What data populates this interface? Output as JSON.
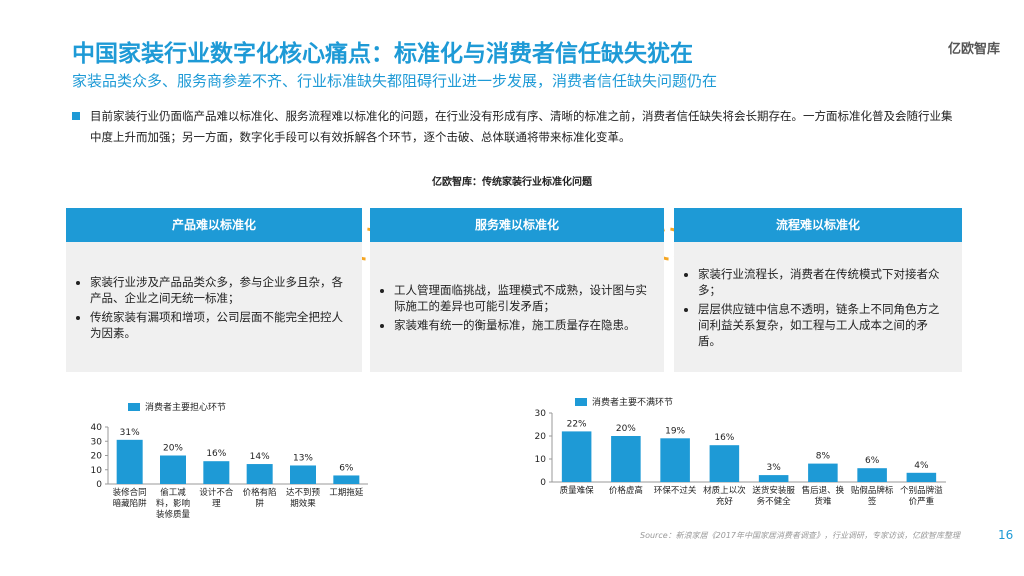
{
  "header": {
    "title": "中国家装行业数字化核心痛点：标准化与消费者信任缺失犹在",
    "subtitle": "家装品类众多、服务商参差不齐、行业标准缺失都阻碍行业进一步发展，消费者信任缺失问题仍在",
    "logo": "亿欧智库"
  },
  "intro": "目前家装行业仍面临产品难以标准化、服务流程难以标准化的问题，在行业没有形成有序、清晰的标准之前，消费者信任缺失将会长期存在。一方面标准化普及会随行业集中度上升而加强；另一方面，数字化手段可以有效拆解各个环节，逐个击破、总体联通将带来标准化变革。",
  "figure_caption": "亿欧智库：传统家装行业标准化问题",
  "columns": [
    {
      "title": "产品难以标准化",
      "bullets": [
        "家装行业涉及产品品类众多，参与企业多且杂，各产品、企业之间无统一标准；",
        "传统家装有漏项和增项，公司层面不能完全把控人为因素。"
      ]
    },
    {
      "title": "服务难以标准化",
      "bullets": [
        "工人管理面临挑战，监理模式不成熟，设计图与实际施工的差异也可能引发矛盾；",
        "家装难有统一的衡量标准，施工质量存在隐患。"
      ]
    },
    {
      "title": "流程难以标准化",
      "bullets": [
        "家装行业流程长，消费者在传统模式下对接者众多；",
        "层层供应链中信息不透明，链条上不同角色方之间利益关系复杂，如工程与工人成本之间的矛盾。"
      ]
    }
  ],
  "chart_data": [
    {
      "type": "bar",
      "series": [
        {
          "name": "消费者主要担心环节",
          "color": "#1e9ad6",
          "values": [
            31,
            20,
            16,
            14,
            13,
            6
          ],
          "value_labels": [
            "31%",
            "20%",
            "16%",
            "14%",
            "13%",
            "6%"
          ]
        }
      ],
      "categories": [
        "装修合同暗藏陷阱",
        "偷工减料，影响装修质量",
        "设计不合理",
        "价格有陷阱",
        "达不到预期效果",
        "工期拖延"
      ],
      "ylim": [
        0,
        40
      ],
      "yticks": [
        0,
        10,
        20,
        30,
        40
      ]
    },
    {
      "type": "bar",
      "series": [
        {
          "name": "消费者主要不满环节",
          "color": "#1e9ad6",
          "values": [
            22,
            20,
            19,
            16,
            3,
            8,
            6,
            4
          ],
          "value_labels": [
            "22%",
            "20%",
            "19%",
            "16%",
            "3%",
            "8%",
            "6%",
            "4%"
          ]
        }
      ],
      "categories": [
        "质量难保",
        "价格虚高",
        "环保不过关",
        "材质上以次充好",
        "送货安装服务不健全",
        "售后退、换货难",
        "贴假品牌标签",
        "个别品牌溢价严重"
      ],
      "ylim": [
        0,
        30
      ],
      "yticks": [
        0,
        10,
        20,
        30
      ]
    }
  ],
  "source": "Source：新浪家居《2017年中国家居消费者调查》，行业调研，专家访谈，亿欧智库整理",
  "page_number": "16"
}
